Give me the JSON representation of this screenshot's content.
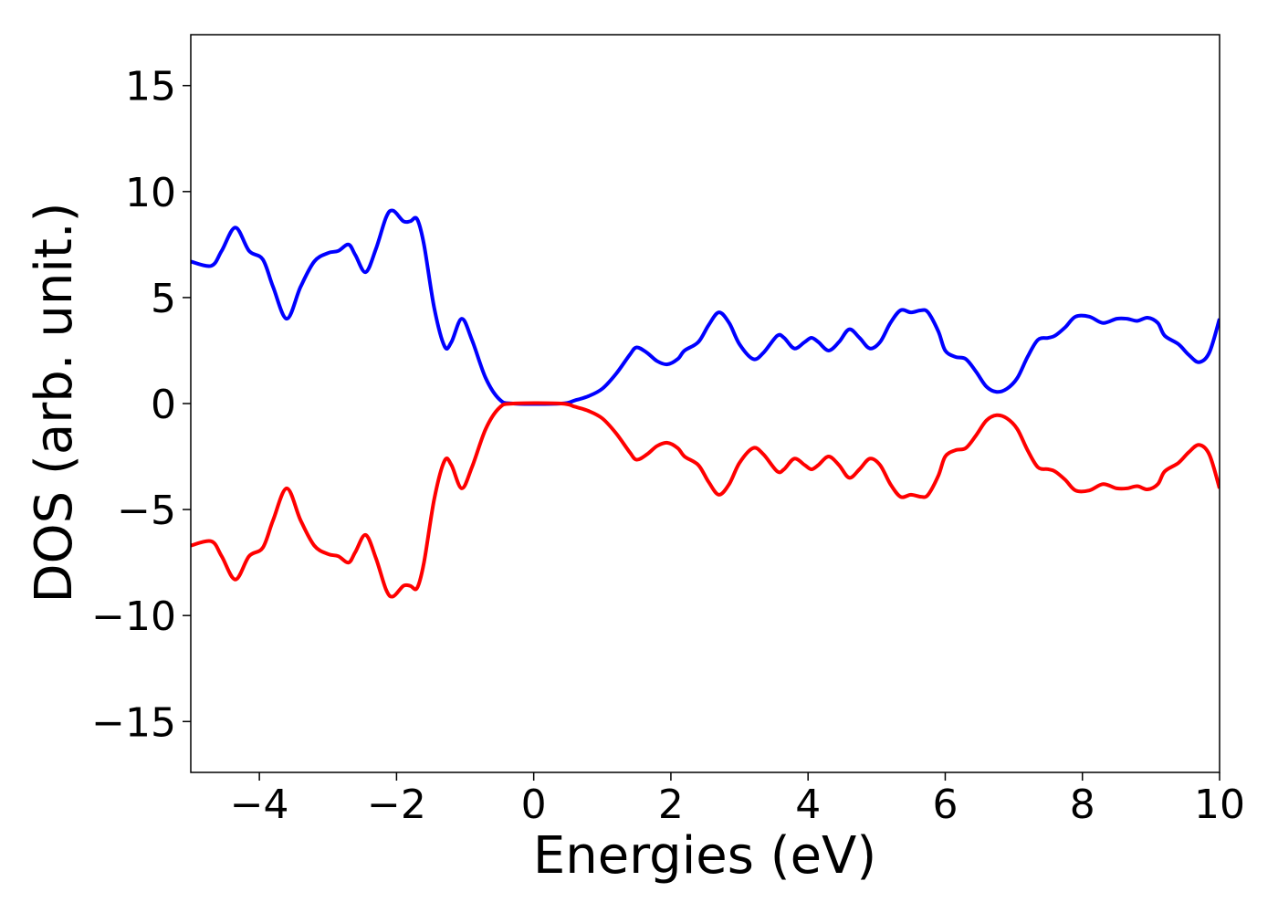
{
  "chart_data": {
    "type": "line",
    "x_label": "Energies (eV)",
    "y_label": "DOS (arb. unit.)",
    "x": [
      -5,
      -4.7,
      -4.55,
      -4.35,
      -4.15,
      -3.95,
      -3.8,
      -3.6,
      -3.4,
      -3.2,
      -3.0,
      -2.85,
      -2.7,
      -2.6,
      -2.45,
      -2.3,
      -2.15,
      -2.05,
      -1.9,
      -1.8,
      -1.7,
      -1.6,
      -1.45,
      -1.3,
      -1.2,
      -1.05,
      -0.9,
      -0.7,
      -0.5,
      -0.3,
      0.4,
      0.6,
      0.8,
      1.0,
      1.2,
      1.4,
      1.5,
      1.65,
      1.8,
      1.95,
      2.1,
      2.2,
      2.4,
      2.55,
      2.7,
      2.85,
      3.0,
      3.2,
      3.35,
      3.55,
      3.65,
      3.8,
      3.95,
      4.05,
      4.15,
      4.3,
      4.45,
      4.6,
      4.75,
      4.9,
      5.05,
      5.2,
      5.35,
      5.5,
      5.65,
      5.75,
      5.9,
      6.0,
      6.15,
      6.3,
      6.45,
      6.6,
      6.75,
      6.9,
      7.05,
      7.2,
      7.35,
      7.5,
      7.6,
      7.75,
      7.9,
      8.1,
      8.3,
      8.5,
      8.65,
      8.8,
      8.95,
      9.1,
      9.2,
      9.4,
      9.55,
      9.7,
      9.85,
      10
    ],
    "series": [
      {
        "color": "#0000ff",
        "values": [
          6.7,
          6.5,
          7.2,
          8.3,
          7.2,
          6.8,
          5.5,
          4.0,
          5.5,
          6.7,
          7.1,
          7.2,
          7.5,
          7.0,
          6.2,
          7.3,
          8.8,
          9.1,
          8.6,
          8.6,
          8.7,
          7.5,
          4.5,
          2.7,
          2.9,
          4.0,
          3.0,
          1.2,
          0.2,
          0,
          0,
          0.15,
          0.35,
          0.7,
          1.4,
          2.3,
          2.65,
          2.4,
          2.0,
          1.85,
          2.1,
          2.5,
          2.9,
          3.7,
          4.3,
          3.8,
          2.8,
          2.1,
          2.4,
          3.2,
          3.1,
          2.6,
          2.9,
          3.1,
          2.9,
          2.5,
          2.9,
          3.5,
          3.1,
          2.6,
          2.9,
          3.8,
          4.4,
          4.3,
          4.4,
          4.3,
          3.4,
          2.5,
          2.2,
          2.1,
          1.5,
          0.8,
          0.55,
          0.7,
          1.2,
          2.2,
          3.0,
          3.1,
          3.2,
          3.6,
          4.1,
          4.1,
          3.8,
          4.0,
          4.0,
          3.9,
          4.05,
          3.8,
          3.2,
          2.8,
          2.3,
          1.95,
          2.4,
          4.0
        ]
      },
      {
        "color": "#ff0000",
        "values": [
          -6.7,
          -6.5,
          -7.2,
          -8.3,
          -7.2,
          -6.8,
          -5.5,
          -4.0,
          -5.5,
          -6.7,
          -7.1,
          -7.2,
          -7.5,
          -7.0,
          -6.2,
          -7.3,
          -8.8,
          -9.1,
          -8.6,
          -8.6,
          -8.7,
          -7.5,
          -4.5,
          -2.7,
          -2.9,
          -4.0,
          -3.0,
          -1.2,
          -0.2,
          0,
          0,
          -0.15,
          -0.35,
          -0.7,
          -1.4,
          -2.3,
          -2.65,
          -2.4,
          -2.0,
          -1.85,
          -2.1,
          -2.5,
          -2.9,
          -3.7,
          -4.3,
          -3.8,
          -2.8,
          -2.1,
          -2.4,
          -3.2,
          -3.1,
          -2.6,
          -2.9,
          -3.1,
          -2.9,
          -2.5,
          -2.9,
          -3.5,
          -3.1,
          -2.6,
          -2.9,
          -3.8,
          -4.4,
          -4.3,
          -4.4,
          -4.3,
          -3.4,
          -2.5,
          -2.2,
          -2.1,
          -1.5,
          -0.8,
          -0.55,
          -0.7,
          -1.2,
          -2.2,
          -3.0,
          -3.1,
          -3.2,
          -3.6,
          -4.1,
          -4.1,
          -3.8,
          -4.0,
          -4.0,
          -3.9,
          -4.05,
          -3.8,
          -3.2,
          -2.8,
          -2.3,
          -1.95,
          -2.4,
          -4.0
        ]
      }
    ],
    "xlim": [
      -5,
      10
    ],
    "xticks": [
      {
        "value": -4,
        "label": "−4"
      },
      {
        "value": -2,
        "label": "−2"
      },
      0,
      2,
      4,
      6,
      8,
      10
    ],
    "ylim": [
      -17.4,
      17.4
    ],
    "yticks": [
      {
        "value": -15,
        "label": "−15"
      },
      {
        "value": -10,
        "label": "−10"
      },
      {
        "value": -5,
        "label": "−5"
      },
      0,
      5,
      10,
      15
    ],
    "grid": false
  }
}
